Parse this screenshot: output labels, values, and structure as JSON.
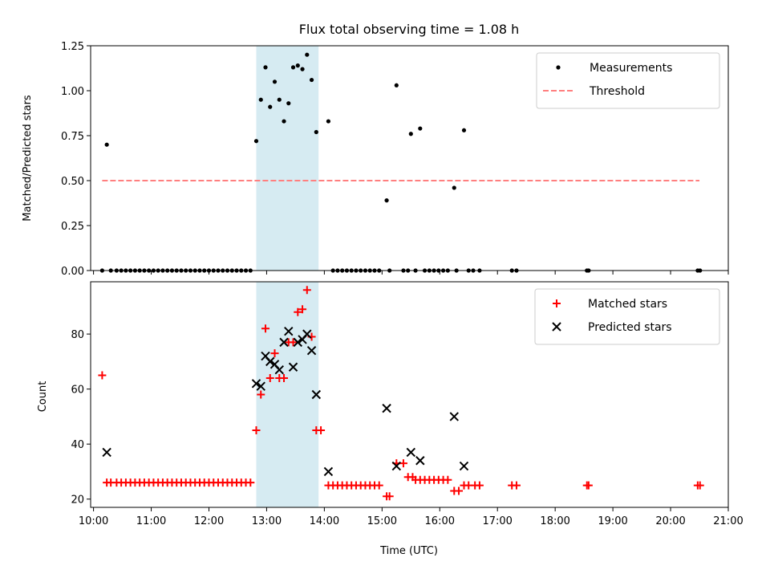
{
  "chart_data": [
    {
      "type": "scatter",
      "title": "Flux total observing time = 1.08 h",
      "ylabel": "Matched/Predicted stars",
      "xlim": [
        9.95,
        21.0
      ],
      "ylim": [
        0.0,
        1.25
      ],
      "yticks": [
        0.0,
        0.25,
        0.5,
        0.75,
        1.0,
        1.25
      ],
      "ytick_labels": [
        "0.00",
        "0.25",
        "0.50",
        "0.75",
        "1.00",
        "1.25"
      ],
      "shaded_span": {
        "x0": 12.82,
        "x1": 13.9,
        "color": "#add8e6"
      },
      "legend_position": "top-right",
      "series": [
        {
          "name": "Measurements",
          "marker": "dot",
          "color": "#000000",
          "points": [
            [
              10.23,
              0.7
            ],
            [
              12.82,
              0.72
            ],
            [
              12.9,
              0.95
            ],
            [
              12.98,
              1.13
            ],
            [
              13.06,
              0.91
            ],
            [
              13.14,
              1.05
            ],
            [
              13.22,
              0.95
            ],
            [
              13.3,
              0.83
            ],
            [
              13.38,
              0.93
            ],
            [
              13.46,
              1.13
            ],
            [
              13.54,
              1.14
            ],
            [
              13.62,
              1.12
            ],
            [
              13.7,
              1.2
            ],
            [
              13.78,
              1.06
            ],
            [
              13.86,
              0.77
            ],
            [
              14.07,
              0.83
            ],
            [
              15.08,
              0.39
            ],
            [
              15.25,
              1.03
            ],
            [
              15.5,
              0.76
            ],
            [
              15.66,
              0.79
            ],
            [
              16.25,
              0.46
            ],
            [
              16.42,
              0.78
            ]
          ]
        },
        {
          "name": "Threshold",
          "style": "dashed",
          "color": "#ff7f7f",
          "points": [
            [
              10.15,
              0.5
            ],
            [
              20.5,
              0.5
            ]
          ]
        }
      ],
      "zero_x": [
        10.15,
        10.3,
        10.4,
        10.48,
        10.56,
        10.64,
        10.72,
        10.8,
        10.88,
        10.96,
        11.04,
        11.12,
        11.2,
        11.28,
        11.36,
        11.44,
        11.52,
        11.6,
        11.68,
        11.76,
        11.84,
        11.92,
        12.0,
        12.08,
        12.16,
        12.24,
        12.32,
        12.4,
        12.48,
        12.56,
        12.64,
        12.72,
        14.15,
        14.23,
        14.31,
        14.39,
        14.47,
        14.55,
        14.63,
        14.71,
        14.79,
        14.87,
        14.95,
        15.13,
        15.37,
        15.45,
        15.58,
        15.74,
        15.82,
        15.9,
        15.98,
        16.06,
        16.14,
        16.29,
        16.5,
        16.58,
        16.69,
        17.25,
        17.33,
        18.55,
        18.58,
        20.47,
        20.51
      ]
    },
    {
      "type": "scatter",
      "xlabel": "Time (UTC)",
      "ylabel": "Count",
      "xlim": [
        9.95,
        21.0
      ],
      "ylim": [
        17,
        99
      ],
      "yticks": [
        20,
        40,
        60,
        80
      ],
      "ytick_labels": [
        "20",
        "40",
        "60",
        "80"
      ],
      "xticks": [
        10,
        11,
        12,
        13,
        14,
        15,
        16,
        17,
        18,
        19,
        20,
        21
      ],
      "xtick_labels": [
        "10:00",
        "11:00",
        "12:00",
        "13:00",
        "14:00",
        "15:00",
        "16:00",
        "17:00",
        "18:00",
        "19:00",
        "20:00",
        "21:00"
      ],
      "shaded_span": {
        "x0": 12.82,
        "x1": 13.9,
        "color": "#add8e6"
      },
      "legend_position": "top-right",
      "series": [
        {
          "name": "Matched stars",
          "marker": "plus",
          "color": "#ff0000",
          "points": [
            [
              10.15,
              65
            ],
            [
              10.23,
              26
            ],
            [
              10.3,
              26
            ],
            [
              10.4,
              26
            ],
            [
              10.48,
              26
            ],
            [
              10.56,
              26
            ],
            [
              10.64,
              26
            ],
            [
              10.72,
              26
            ],
            [
              10.8,
              26
            ],
            [
              10.88,
              26
            ],
            [
              10.96,
              26
            ],
            [
              11.04,
              26
            ],
            [
              11.12,
              26
            ],
            [
              11.2,
              26
            ],
            [
              11.28,
              26
            ],
            [
              11.36,
              26
            ],
            [
              11.44,
              26
            ],
            [
              11.52,
              26
            ],
            [
              11.6,
              26
            ],
            [
              11.68,
              26
            ],
            [
              11.76,
              26
            ],
            [
              11.84,
              26
            ],
            [
              11.92,
              26
            ],
            [
              12.0,
              26
            ],
            [
              12.08,
              26
            ],
            [
              12.16,
              26
            ],
            [
              12.24,
              26
            ],
            [
              12.32,
              26
            ],
            [
              12.4,
              26
            ],
            [
              12.48,
              26
            ],
            [
              12.56,
              26
            ],
            [
              12.64,
              26
            ],
            [
              12.72,
              26
            ],
            [
              12.82,
              45
            ],
            [
              12.9,
              58
            ],
            [
              12.98,
              82
            ],
            [
              13.06,
              64
            ],
            [
              13.14,
              73
            ],
            [
              13.22,
              64
            ],
            [
              13.3,
              64
            ],
            [
              13.38,
              77
            ],
            [
              13.46,
              77
            ],
            [
              13.54,
              88
            ],
            [
              13.62,
              89
            ],
            [
              13.7,
              96
            ],
            [
              13.78,
              79
            ],
            [
              13.86,
              45
            ],
            [
              13.94,
              45
            ],
            [
              14.07,
              25
            ],
            [
              14.15,
              25
            ],
            [
              14.23,
              25
            ],
            [
              14.31,
              25
            ],
            [
              14.39,
              25
            ],
            [
              14.47,
              25
            ],
            [
              14.55,
              25
            ],
            [
              14.63,
              25
            ],
            [
              14.71,
              25
            ],
            [
              14.79,
              25
            ],
            [
              14.87,
              25
            ],
            [
              14.95,
              25
            ],
            [
              15.08,
              21
            ],
            [
              15.13,
              21
            ],
            [
              15.25,
              33
            ],
            [
              15.37,
              33
            ],
            [
              15.45,
              28
            ],
            [
              15.53,
              28
            ],
            [
              15.58,
              27
            ],
            [
              15.66,
              27
            ],
            [
              15.74,
              27
            ],
            [
              15.82,
              27
            ],
            [
              15.9,
              27
            ],
            [
              15.98,
              27
            ],
            [
              16.06,
              27
            ],
            [
              16.14,
              27
            ],
            [
              16.25,
              23
            ],
            [
              16.33,
              23
            ],
            [
              16.42,
              25
            ],
            [
              16.5,
              25
            ],
            [
              16.61,
              25
            ],
            [
              16.69,
              25
            ],
            [
              17.25,
              25
            ],
            [
              17.33,
              25
            ],
            [
              18.55,
              25
            ],
            [
              18.58,
              25
            ],
            [
              20.47,
              25
            ],
            [
              20.51,
              25
            ]
          ]
        },
        {
          "name": "Predicted stars",
          "marker": "x",
          "color": "#000000",
          "points": [
            [
              10.23,
              37
            ],
            [
              12.82,
              62
            ],
            [
              12.9,
              61
            ],
            [
              12.98,
              72
            ],
            [
              13.06,
              70
            ],
            [
              13.14,
              69
            ],
            [
              13.22,
              67
            ],
            [
              13.3,
              77
            ],
            [
              13.38,
              81
            ],
            [
              13.46,
              68
            ],
            [
              13.54,
              77
            ],
            [
              13.62,
              78
            ],
            [
              13.7,
              80
            ],
            [
              13.78,
              74
            ],
            [
              13.86,
              58
            ],
            [
              14.07,
              30
            ],
            [
              15.08,
              53
            ],
            [
              15.25,
              32
            ],
            [
              15.5,
              37
            ],
            [
              15.66,
              34
            ],
            [
              16.25,
              50
            ],
            [
              16.42,
              32
            ]
          ]
        }
      ]
    }
  ]
}
